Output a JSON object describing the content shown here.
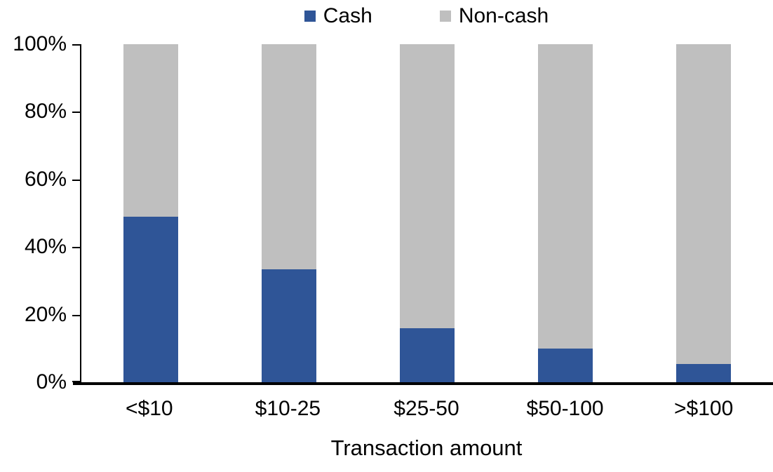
{
  "chart_data": {
    "type": "bar",
    "subtype": "stacked-100",
    "title": "",
    "categories": [
      "<$10",
      "$10-25",
      "$25-50",
      "$50-100",
      ">$100"
    ],
    "series": [
      {
        "name": "Cash",
        "color": "#2F5597",
        "values": [
          49,
          33.5,
          16,
          10,
          5.5
        ]
      },
      {
        "name": "Non-cash",
        "color": "#BFBFBF",
        "values": [
          51,
          66.5,
          84,
          90,
          94.5
        ]
      }
    ],
    "xlabel": "Transaction amount",
    "ylabel": "",
    "ylim": [
      0,
      100
    ],
    "yticks": [
      0,
      20,
      40,
      60,
      80,
      100
    ],
    "ytick_labels": [
      "0%",
      "20%",
      "40%",
      "60%",
      "80%",
      "100%"
    ],
    "legend_position": "top",
    "grid": false,
    "axis_color": "#000000",
    "background_color": "#FFFFFF"
  }
}
